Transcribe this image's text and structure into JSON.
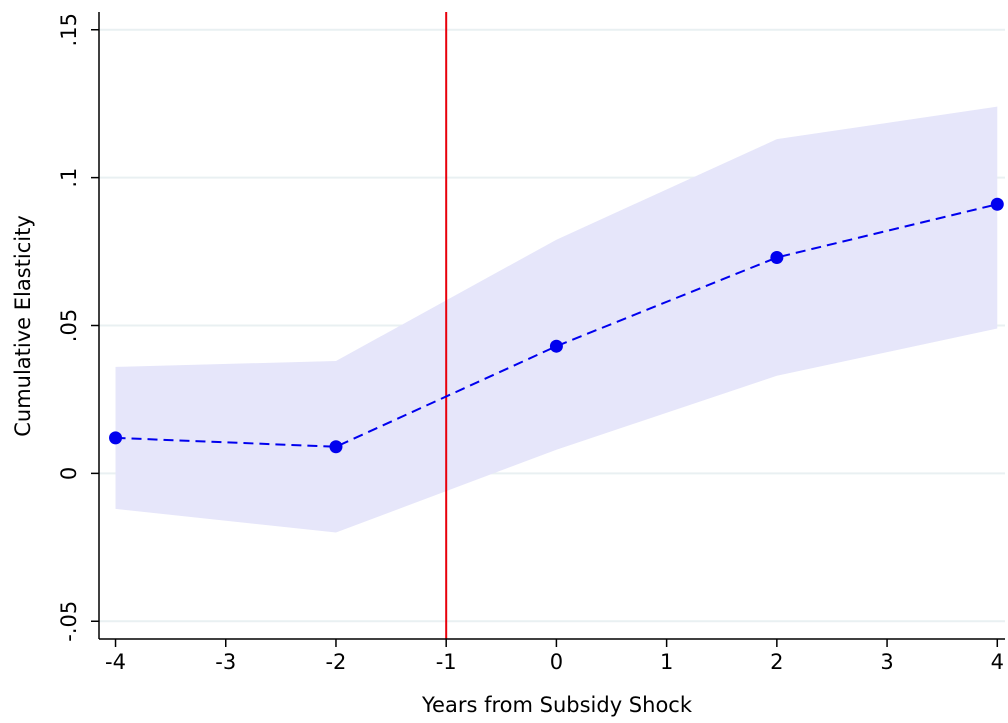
{
  "chart_data": {
    "type": "line",
    "x_label": "Years from Subsidy Shock",
    "y_label": "Cumulative Elasticity",
    "x": [
      -4,
      -2,
      0,
      2,
      4
    ],
    "values": [
      0.012,
      0.009,
      0.043,
      0.073,
      0.091
    ],
    "ci_lower": [
      -0.012,
      -0.02,
      0.008,
      0.033,
      0.049
    ],
    "ci_upper": [
      0.036,
      0.038,
      0.079,
      0.113,
      0.124
    ],
    "color": "#0000ee",
    "band_color": "#e6e6fa",
    "line_style": "dashed",
    "vline": {
      "x": -1,
      "color": "#e8000b"
    },
    "xlim": [
      -4.15,
      4.07
    ],
    "ylim": [
      -0.056,
      0.156
    ],
    "xticks": [
      -4,
      -3,
      -2,
      -1,
      0,
      1,
      2,
      3,
      4
    ],
    "yticks": [
      {
        "value": -0.05,
        "label": "-.05"
      },
      0,
      {
        "value": 0.05,
        "label": ".05"
      },
      {
        "value": 0.1,
        "label": ".1"
      },
      {
        "value": 0.15,
        "label": ".15"
      }
    ],
    "grid": true,
    "grid_color": "#e9f0f2"
  }
}
